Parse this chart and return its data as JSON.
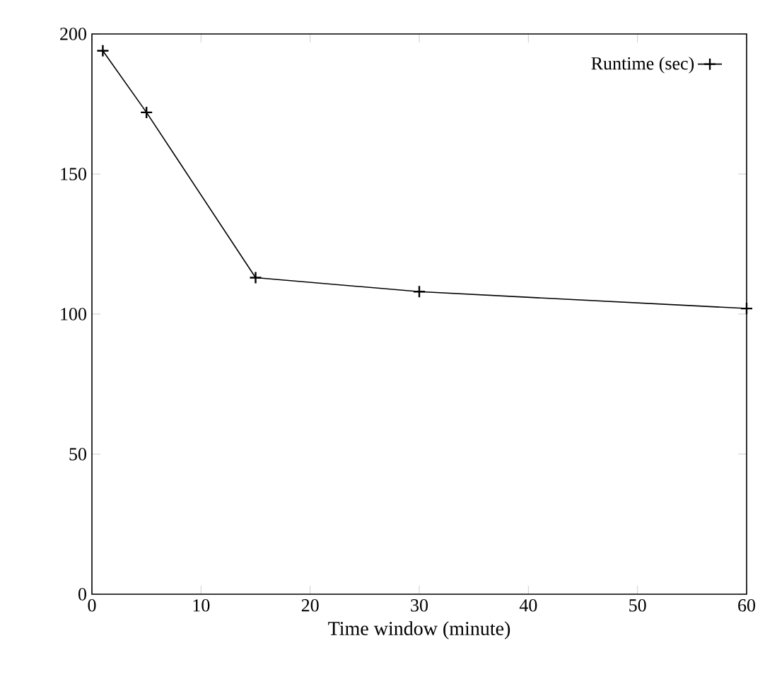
{
  "chart_data": {
    "type": "line",
    "xlabel": "Time window (minute)",
    "x": [
      1,
      5,
      15,
      30,
      60
    ],
    "series": [
      {
        "name": "Runtime (sec)",
        "color": "#000000",
        "values": [
          194,
          172,
          113,
          108,
          102
        ]
      }
    ],
    "xlim": [
      0,
      60
    ],
    "ylim": [
      0,
      200
    ],
    "xticks": [
      0,
      10,
      20,
      30,
      40,
      50,
      60
    ],
    "yticks": [
      0,
      50,
      100,
      150,
      200
    ],
    "legend": "top right",
    "marker": "cross",
    "line_style": "solid",
    "grid": false
  }
}
